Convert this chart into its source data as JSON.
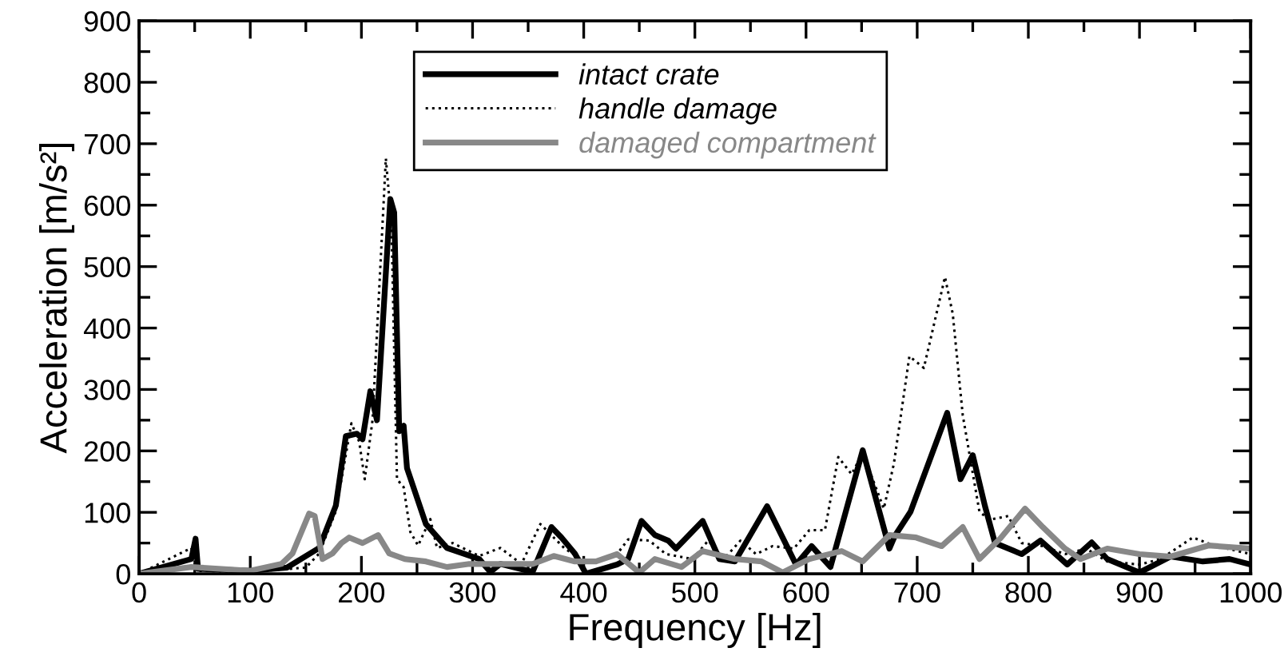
{
  "chart_data": {
    "type": "line",
    "xlabel": "Frequency [Hz]",
    "ylabel": "Acceleration [m/s²]",
    "xlim": [
      0,
      1000
    ],
    "ylim": [
      0,
      900
    ],
    "xticks": [
      0,
      {
        "value": 50,
        "label": null
      },
      100,
      {
        "value": 150,
        "label": null
      },
      200,
      {
        "value": 250,
        "label": null
      },
      300,
      {
        "value": 350,
        "label": null
      },
      400,
      {
        "value": 450,
        "label": null
      },
      500,
      {
        "value": 550,
        "label": null
      },
      600,
      {
        "value": 650,
        "label": null
      },
      700,
      {
        "value": 750,
        "label": null
      },
      800,
      {
        "value": 850,
        "label": null
      },
      900,
      {
        "value": 950,
        "label": null
      },
      1000
    ],
    "yticks": [
      0,
      {
        "value": 50,
        "label": null
      },
      100,
      {
        "value": 150,
        "label": null
      },
      200,
      {
        "value": 250,
        "label": null
      },
      300,
      {
        "value": 350,
        "label": null
      },
      400,
      {
        "value": 450,
        "label": null
      },
      500,
      {
        "value": 550,
        "label": null
      },
      600,
      {
        "value": 650,
        "label": null
      },
      700,
      {
        "value": 750,
        "label": null
      },
      800,
      {
        "value": 850,
        "label": null
      },
      900
    ],
    "grid": false,
    "legend": "top",
    "marker": "none",
    "series": [
      {
        "name": "intact crate",
        "color": "#000000",
        "line_style": "solid",
        "x": [
          0,
          47,
          50.8,
          53,
          100,
          133,
          162,
          177,
          186,
          196,
          201,
          208,
          214,
          226,
          229.5,
          234,
          238,
          241,
          258,
          277,
          306,
          316,
          325,
          354,
          371,
          380,
          392,
          402,
          430,
          440,
          452,
          464,
          476,
          483,
          507,
          522,
          536,
          565,
          591,
          605,
          622,
          651,
          675,
          680,
          694,
          727,
          739,
          750,
          761,
          770,
          794,
          811,
          835,
          857,
          871,
          900,
          928,
          957,
          981,
          1000
        ],
        "values": [
          0,
          24,
          57,
          8,
          5,
          10,
          42,
          111,
          224,
          228,
          219,
          297,
          250,
          610,
          588,
          232,
          241,
          172,
          81,
          42,
          24,
          3,
          16,
          3,
          76,
          59,
          33,
          0,
          15,
          24,
          86,
          63,
          54,
          41,
          86,
          24,
          20,
          110,
          15,
          45,
          11,
          201,
          41,
          62,
          101,
          262,
          154,
          193,
          110,
          50,
          32,
          54,
          15,
          51,
          24,
          2,
          28,
          20,
          24,
          15
        ]
      },
      {
        "name": "handle damage",
        "color": "#000000",
        "line_style": "dotted",
        "x": [
          0,
          47,
          52,
          100,
          150,
          162,
          177,
          191,
          198,
          203,
          210,
          222,
          227,
          232,
          238,
          244,
          251,
          262,
          268,
          282,
          306,
          325,
          344,
          361,
          373,
          383,
          397,
          411,
          430,
          440,
          459,
          474,
          498,
          512,
          526,
          541,
          555,
          570,
          589,
          603,
          617,
          629,
          641,
          651,
          670,
          679,
          693,
          706,
          725,
          732,
          741,
          756,
          765,
          782,
          794,
          813,
          833,
          852,
          871,
          900,
          919,
          948,
          967,
          1000
        ],
        "values": [
          0,
          42,
          5,
          3,
          10,
          33,
          102,
          245,
          215,
          154,
          250,
          676,
          571,
          154,
          141,
          68,
          46,
          89,
          42,
          50,
          29,
          42,
          16,
          81,
          59,
          41,
          24,
          20,
          32,
          56,
          54,
          32,
          24,
          54,
          24,
          54,
          32,
          45,
          41,
          71,
          71,
          190,
          162,
          197,
          106,
          179,
          354,
          335,
          483,
          423,
          258,
          101,
          88,
          94,
          50,
          45,
          32,
          41,
          20,
          15,
          24,
          59,
          46,
          32
        ]
      },
      {
        "name": "damaged compartment",
        "color": "#888888",
        "line_style": "solid",
        "x": [
          0,
          47,
          100,
          128,
          138,
          153,
          158,
          165,
          174,
          182,
          189,
          201,
          215,
          225,
          239,
          258,
          277,
          297,
          325,
          354,
          373,
          392,
          411,
          430,
          450,
          464,
          488,
          507,
          536,
          560,
          579,
          603,
          632,
          651,
          675,
          699,
          722,
          741,
          756,
          775,
          797,
          813,
          833,
          847,
          871,
          900,
          928,
          962,
          1000
        ],
        "values": [
          0,
          11,
          5,
          16,
          33,
          98,
          94,
          24,
          33,
          50,
          59,
          50,
          63,
          33,
          24,
          20,
          11,
          16,
          16,
          16,
          29,
          20,
          20,
          32,
          2,
          24,
          11,
          37,
          24,
          20,
          2,
          24,
          37,
          20,
          63,
          59,
          45,
          76,
          24,
          58,
          106,
          76,
          41,
          24,
          41,
          32,
          28,
          46,
          41
        ]
      }
    ]
  }
}
